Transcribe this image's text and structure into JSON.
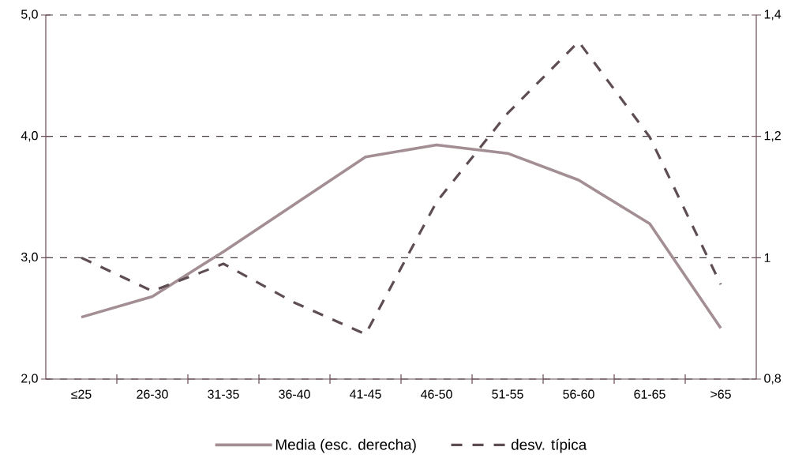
{
  "chart_data": {
    "type": "line",
    "categories": [
      "≤25",
      "26-30",
      "31-35",
      "36-40",
      "41-45",
      "46-50",
      "51-55",
      "56-60",
      "61-65",
      ">65"
    ],
    "series": [
      {
        "name": "Media (esc. derecha)",
        "color": "#a38f93",
        "line_style": "solid",
        "values": [
          2.51,
          2.68,
          3.05,
          3.44,
          3.83,
          3.93,
          3.86,
          3.64,
          3.28,
          2.42
        ]
      },
      {
        "name": "desv. típica",
        "color": "#5e4d52",
        "line_style": "dashed",
        "axis": "y2",
        "values": [
          1.0,
          0.945,
          0.99,
          0.926,
          0.874,
          1.092,
          1.238,
          1.356,
          1.199,
          0.956
        ]
      }
    ],
    "ylim": [
      2,
      5
    ],
    "yticks": [
      {
        "value": 2,
        "label": "2,0"
      },
      {
        "value": 3,
        "label": "3,0"
      },
      {
        "value": 4,
        "label": "4,0"
      },
      {
        "value": 5,
        "label": "5,0"
      }
    ],
    "y2lim": [
      0.8,
      1.4
    ],
    "y2ticks": [
      {
        "value": 0.8,
        "label": "0,8"
      },
      1,
      {
        "value": 1.2,
        "label": "1,2"
      },
      {
        "value": 1.4,
        "label": "1,4"
      }
    ],
    "grid": "y",
    "legend": "bottom"
  }
}
